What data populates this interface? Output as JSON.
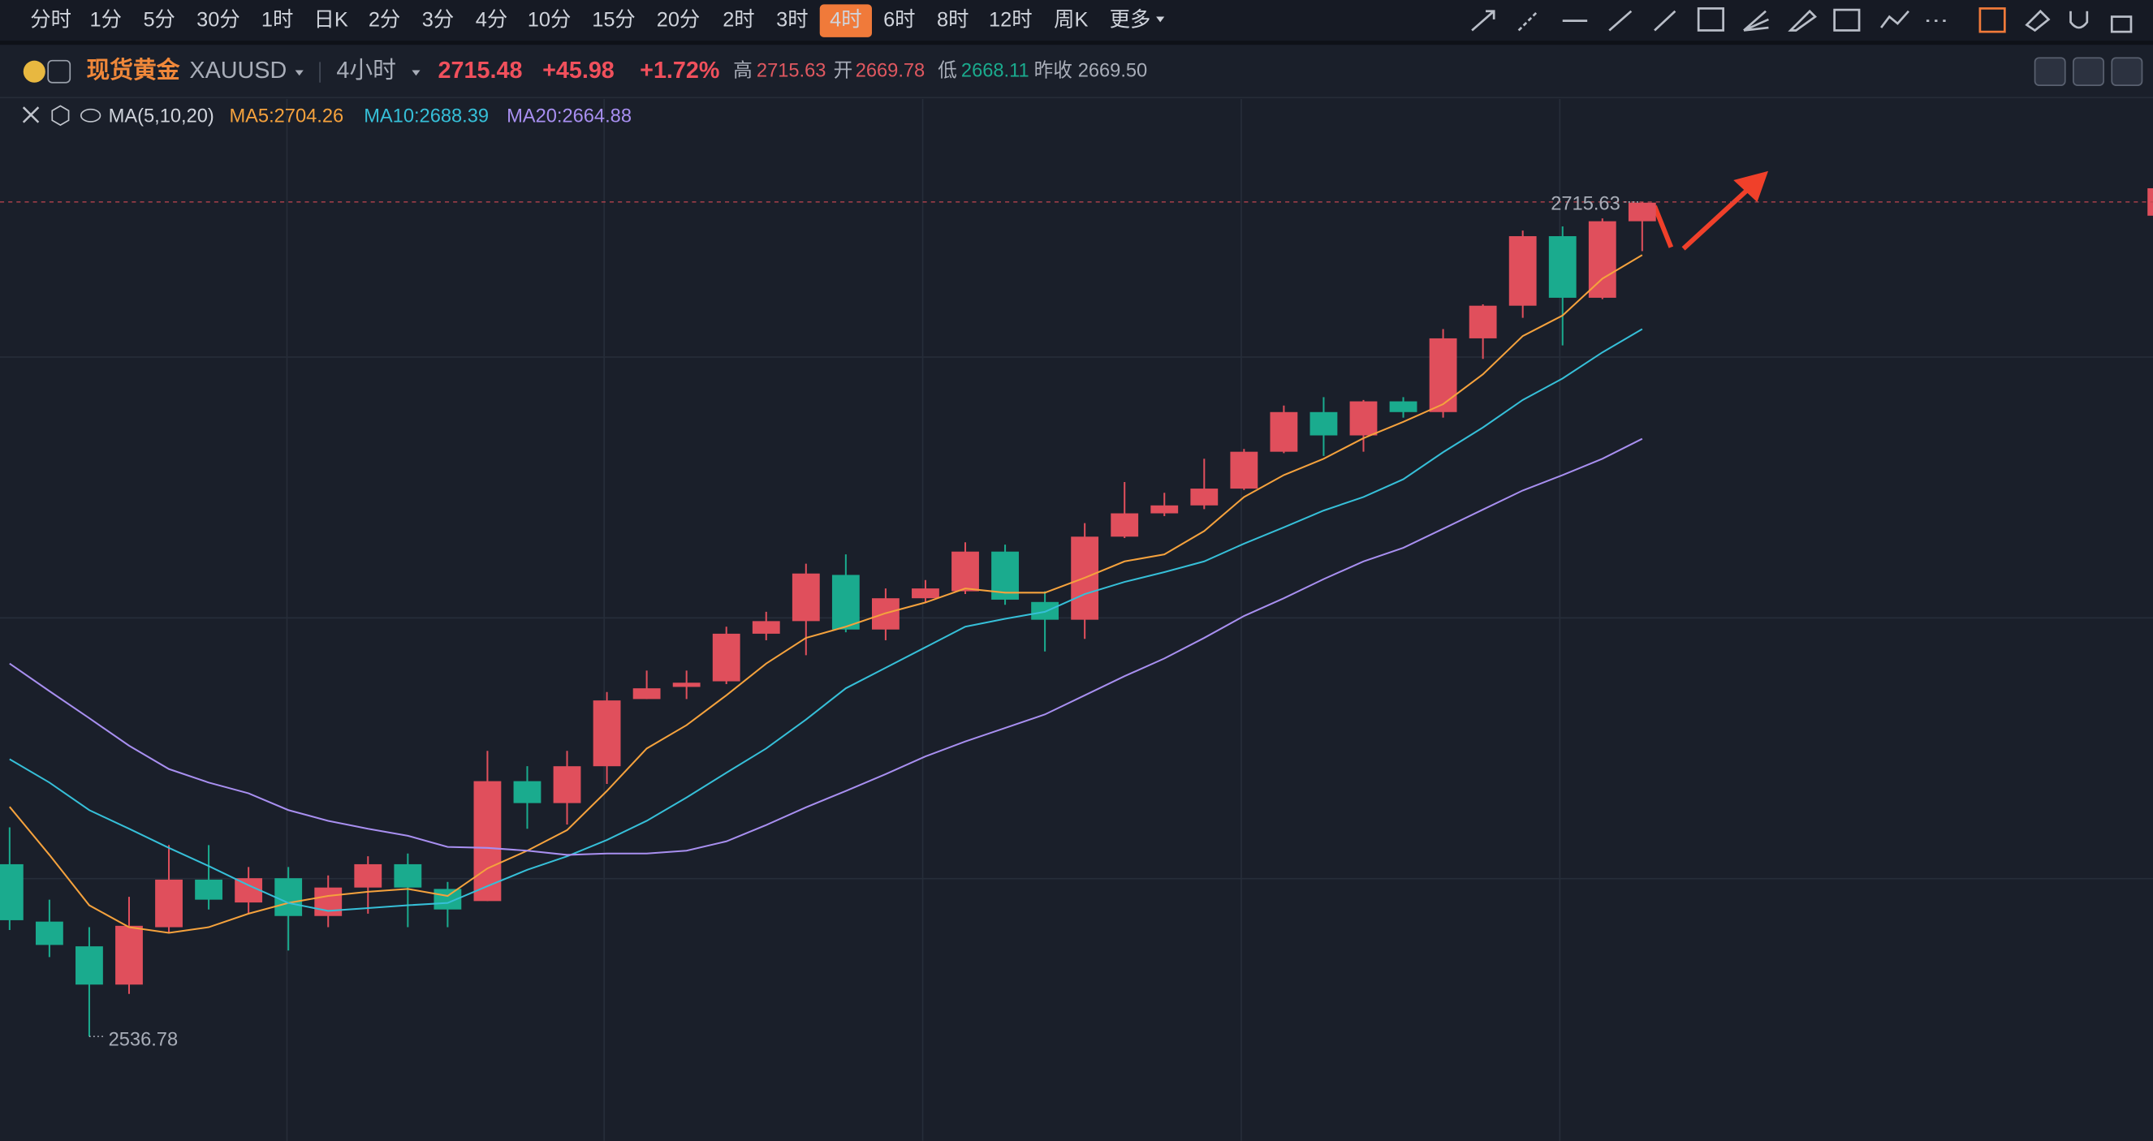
{
  "toolbar": {
    "intervals": [
      "分时",
      "1分",
      "5分",
      "30分",
      "1时",
      "日K",
      "2分",
      "3分",
      "4分",
      "10分",
      "15分",
      "20分",
      "2时",
      "3时",
      "4时",
      "6时",
      "8时",
      "12时",
      "周K",
      "更多"
    ],
    "active_index": 14
  },
  "header": {
    "name": "现货黄金",
    "symbol": "XAUUSD",
    "period": "4小时",
    "price": "2715.48",
    "change": "+45.98",
    "change_pct": "+1.72%",
    "high_label": "高",
    "high": "2715.63",
    "open_label": "开",
    "open": "2669.78",
    "low_label": "低",
    "low": "2668.11",
    "prev_label": "昨收",
    "prev_close": "2669.50"
  },
  "indicator": {
    "name": "MA(5,10,20)",
    "legend": [
      "MA5:2704.26",
      "MA10:2688.39",
      "MA20:2664.88"
    ]
  },
  "chart_data": {
    "type": "candlestick",
    "up_color": "#e04f5c",
    "down_color": "#1aab8e",
    "open": [
      2573.7,
      2561.4,
      2556.1,
      2547.9,
      2560.2,
      2570.4,
      2565.5,
      2570.7,
      2562.6,
      2568.7,
      2573.7,
      2568.4,
      2565.8,
      2591.5,
      2586.8,
      2594.7,
      2609.1,
      2611.7,
      2612.9,
      2623.1,
      2625.8,
      2635.7,
      2624.0,
      2630.7,
      2632.2,
      2640.7,
      2629.9,
      2626.1,
      2643.9,
      2648.9,
      2650.6,
      2654.2,
      2662.1,
      2670.6,
      2665.6,
      2672.9,
      2670.6,
      2686.4,
      2693.4,
      2708.3,
      2695.1,
      2711.5
    ],
    "high": [
      2581.6,
      2566.1,
      2560.2,
      2566.7,
      2577.8,
      2577.8,
      2573.1,
      2573.1,
      2571.3,
      2575.4,
      2576.0,
      2569.9,
      2598.0,
      2594.7,
      2598.0,
      2610.6,
      2615.2,
      2615.2,
      2624.6,
      2627.8,
      2638.1,
      2640.1,
      2632.8,
      2634.6,
      2642.7,
      2642.2,
      2632.2,
      2646.8,
      2655.6,
      2653.3,
      2660.6,
      2662.7,
      2672.0,
      2673.8,
      2673.2,
      2673.8,
      2688.4,
      2693.7,
      2709.5,
      2710.4,
      2712.1,
      2715.63
    ],
    "low": [
      2559.6,
      2553.8,
      2536.78,
      2545.9,
      2559.0,
      2564.0,
      2563.1,
      2555.2,
      2560.2,
      2563.1,
      2560.2,
      2560.2,
      2565.8,
      2581.3,
      2582.2,
      2590.9,
      2609.1,
      2609.1,
      2612.3,
      2621.7,
      2618.5,
      2623.4,
      2621.7,
      2629.9,
      2631.6,
      2629.3,
      2619.3,
      2622.0,
      2643.6,
      2648.3,
      2649.8,
      2653.9,
      2661.8,
      2661.2,
      2662.1,
      2669.4,
      2669.4,
      2682.0,
      2690.8,
      2684.9,
      2694.8,
      2705.1
    ],
    "close": [
      2561.7,
      2556.4,
      2547.9,
      2560.5,
      2570.4,
      2566.1,
      2570.7,
      2562.6,
      2568.7,
      2573.7,
      2568.7,
      2564.0,
      2591.5,
      2586.8,
      2594.7,
      2608.8,
      2611.4,
      2612.6,
      2623.1,
      2625.8,
      2636.0,
      2624.0,
      2630.7,
      2632.8,
      2640.7,
      2630.4,
      2626.1,
      2643.9,
      2648.9,
      2650.6,
      2654.2,
      2662.1,
      2670.6,
      2665.6,
      2672.9,
      2670.6,
      2686.4,
      2693.4,
      2708.3,
      2695.1,
      2711.5,
      2715.48
    ],
    "series": [
      {
        "name": "MA5",
        "color": "#f5a23d",
        "values": [
          2586.0,
          2575.7,
          2564.9,
          2560.2,
          2559.0,
          2560.2,
          2563.1,
          2565.4,
          2566.9,
          2567.8,
          2568.4,
          2566.9,
          2572.8,
          2576.6,
          2581.0,
          2589.4,
          2598.5,
          2603.5,
          2609.9,
          2616.7,
          2622.2,
          2624.6,
          2627.5,
          2629.8,
          2632.8,
          2631.9,
          2631.9,
          2635.1,
          2638.6,
          2640.1,
          2645.1,
          2652.4,
          2657.1,
          2660.6,
          2665.0,
          2668.5,
          2672.3,
          2678.7,
          2686.9,
          2691.3,
          2699.2,
          2704.26
        ]
      },
      {
        "name": "MA10",
        "color": "#36bfd8",
        "values": [
          2596.2,
          2591.2,
          2585.3,
          2581.3,
          2577.2,
          2573.3,
          2569.2,
          2565.4,
          2563.7,
          2564.3,
          2564.9,
          2565.4,
          2569.0,
          2572.5,
          2575.4,
          2578.9,
          2583.0,
          2588.0,
          2593.3,
          2598.5,
          2604.7,
          2611.4,
          2615.8,
          2620.2,
          2624.6,
          2626.3,
          2627.8,
          2631.6,
          2634.2,
          2636.3,
          2638.6,
          2642.4,
          2645.9,
          2649.5,
          2652.4,
          2656.2,
          2662.0,
          2667.3,
          2673.2,
          2677.8,
          2683.4,
          2688.39
        ]
      },
      {
        "name": "MA20",
        "color": "#a88ff0",
        "values": [
          2616.7,
          2610.8,
          2605.0,
          2599.1,
          2594.1,
          2591.2,
          2588.9,
          2585.3,
          2583.0,
          2581.3,
          2579.8,
          2577.4,
          2577.2,
          2576.6,
          2575.7,
          2576.0,
          2576.0,
          2576.6,
          2578.6,
          2582.1,
          2585.9,
          2589.4,
          2593.0,
          2596.8,
          2600.0,
          2602.9,
          2605.8,
          2609.9,
          2614.0,
          2617.8,
          2622.2,
          2626.9,
          2630.7,
          2634.8,
          2638.6,
          2641.5,
          2645.6,
          2649.7,
          2653.8,
          2657.1,
          2660.6,
          2664.88
        ]
      }
    ]
  }
}
